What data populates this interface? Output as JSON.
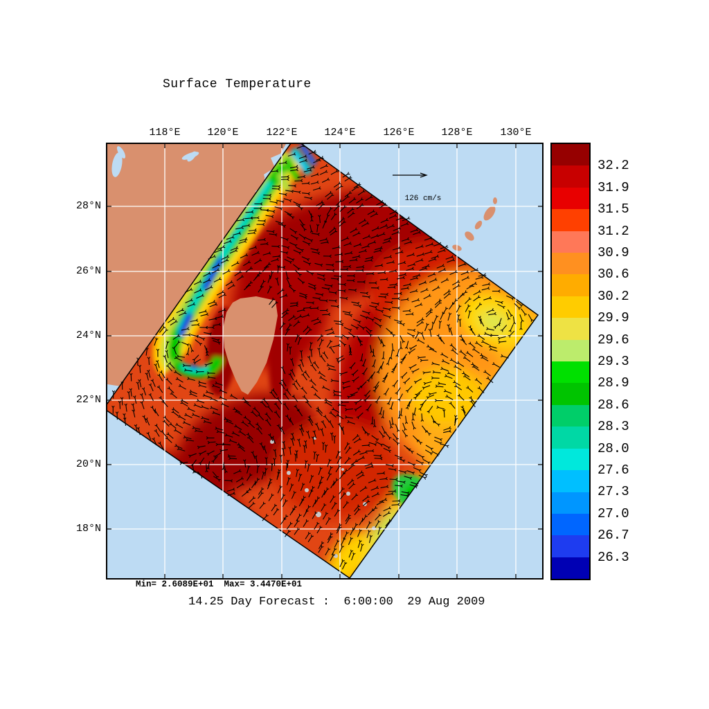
{
  "title": "Surface Temperature",
  "caption": "14.25 Day Forecast :  6:00:00  29 Aug 2009",
  "stats_line": "Min= 2.6089E+01  Max= 3.4470E+01",
  "reference_vector_label": "126 cm/s",
  "axes": {
    "x_ticks": [
      {
        "label": "118°E"
      },
      {
        "label": "120°E"
      },
      {
        "label": "122°E"
      },
      {
        "label": "124°E"
      },
      {
        "label": "126°E"
      },
      {
        "label": "128°E"
      },
      {
        "label": "130°E"
      }
    ],
    "y_ticks": [
      {
        "label": "28°N"
      },
      {
        "label": "26°N"
      },
      {
        "label": "24°N"
      },
      {
        "label": "22°N"
      },
      {
        "label": "20°N"
      },
      {
        "label": "18°N"
      }
    ]
  },
  "colorbar": {
    "labels": [
      "32.2",
      "31.9",
      "31.5",
      "31.2",
      "30.9",
      "30.6",
      "30.2",
      "29.9",
      "29.6",
      "29.3",
      "28.9",
      "28.6",
      "28.3",
      "28.0",
      "27.6",
      "27.3",
      "27.0",
      "26.7",
      "26.3"
    ],
    "segments": [
      "#960000",
      "#C80000",
      "#E80000",
      "#FF4000",
      "#FF7858",
      "#FF9020",
      "#FFAC00",
      "#FFCC00",
      "#EEE244",
      "#BCEC6C",
      "#00E000",
      "#00C400",
      "#00CE69",
      "#00D8A5",
      "#00E8DC",
      "#00BFFF",
      "#0096FF",
      "#0066FF",
      "#1E3CF0",
      "#0000B4"
    ]
  },
  "map": {
    "colors": {
      "ocean": "#BDDBF3",
      "land": "#D9906E",
      "grid": "#FFFFFF",
      "vectors": "#000000",
      "swath_outline": "#000000"
    }
  },
  "chart_data": {
    "type": "heatmap",
    "title": "Surface Temperature",
    "x_ticks": [
      "118E",
      "120E",
      "122E",
      "124E",
      "126E",
      "128E",
      "130E"
    ],
    "y_ticks": [
      "28N",
      "26N",
      "24N",
      "22N",
      "20N",
      "18N"
    ],
    "colorbar_levels": [
      32.2,
      31.9,
      31.5,
      31.2,
      30.9,
      30.6,
      30.2,
      29.9,
      29.6,
      29.3,
      28.9,
      28.6,
      28.3,
      28.0,
      27.6,
      27.3,
      27.0,
      26.7,
      26.3
    ],
    "colorbar_colors_top_to_bottom": [
      "#960000",
      "#C80000",
      "#E80000",
      "#FF4000",
      "#FF7858",
      "#FF9020",
      "#FFAC00",
      "#FFCC00",
      "#EEE244",
      "#BCEC6C",
      "#00E000",
      "#00C400",
      "#00CE69",
      "#00D8A5",
      "#00E8DC",
      "#00BFFF",
      "#0096FF",
      "#0066FF",
      "#1E3CF0",
      "#0000B4"
    ],
    "data_min": 26.089,
    "data_max": 34.47,
    "min_text": "Min= 2.6089E+01",
    "max_text": "Max= 3.4470E+01",
    "overlay": {
      "type": "current vector arrows",
      "reference_arrow": "126 cm/s"
    },
    "annotation": "14.25 Day Forecast :  6:00:00  29 Aug 2009",
    "legend_position": "right colorbar",
    "grid": true
  }
}
